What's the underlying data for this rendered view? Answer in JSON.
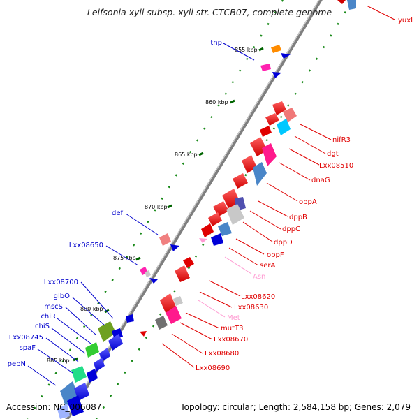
{
  "title": "Leifsonia xyli subsp. xyli str. CTCB07, complete genome",
  "footer": {
    "accession": "Accession: NC_006087",
    "summary": "Topology: circular; Length: 2,584,158 bp; Genes: 2,079"
  },
  "colors": {
    "backbone": "#7f7f7f",
    "forward_label": "#0000cc",
    "reverse_label": "#e00000",
    "rna_label": "#ff9ad2",
    "tick": "#007000"
  },
  "ticks": [
    "855 kbp",
    "860 kbp",
    "865 kbp",
    "870 kbp",
    "875 kbp",
    "880 kbp",
    "885 kbp"
  ],
  "forward_labels": [
    "tnp",
    "def",
    "Lxx08650",
    "Lxx08700",
    "glbO",
    "mscS",
    "chiR",
    "chiS",
    "Lxx08745",
    "spaF",
    "pepN"
  ],
  "reverse_labels": [
    "yuxL",
    "nifR3",
    "dgt",
    "Lxx08510",
    "dnaG",
    "oppA",
    "dppB",
    "dppC",
    "dppD",
    "oppF",
    "serA",
    "Lxx08620",
    "Lxx08630",
    "mutT3",
    "Lxx08670",
    "Lxx08680",
    "Lxx08690"
  ],
  "rna_labels": [
    "Asn",
    "Met"
  ]
}
